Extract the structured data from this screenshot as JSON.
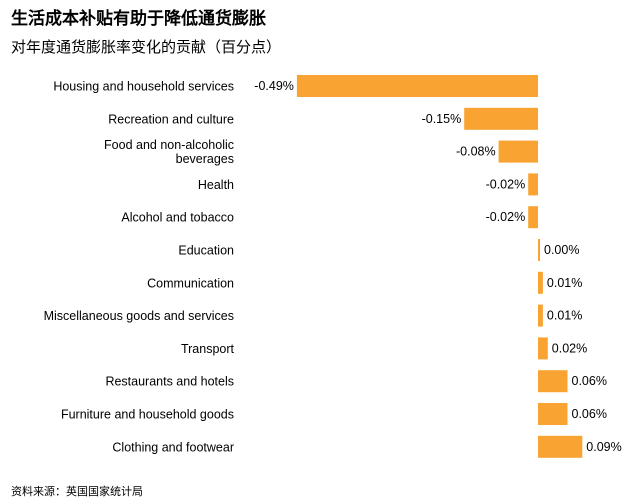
{
  "header": {
    "title": "生活成本补贴有助于降低通货膨胀",
    "subtitle": "对年度通货膨胀率变化的贡献（百分点）"
  },
  "footer": {
    "source": "资料来源：英国国家统计局"
  },
  "colors": {
    "bar": "#F9A432",
    "text": "#000000"
  },
  "chart_data": {
    "type": "bar",
    "orientation": "horizontal",
    "title": "生活成本补贴有助于降低通货膨胀",
    "subtitle": "对年度通货膨胀率变化的贡献（百分点）",
    "categories": [
      "Housing and household services",
      "Recreation and culture",
      "Food and non-alcoholic beverages",
      "Health",
      "Alcohol and tobacco",
      "Education",
      "Communication",
      "Miscellaneous goods and services",
      "Transport",
      "Restaurants and hotels",
      "Furniture and household goods",
      "Clothing and footwear"
    ],
    "category_lines": [
      [
        "Housing and household services"
      ],
      [
        "Recreation and culture"
      ],
      [
        "Food and non-alcoholic",
        "beverages"
      ],
      [
        "Health"
      ],
      [
        "Alcohol and tobacco"
      ],
      [
        "Education"
      ],
      [
        "Communication"
      ],
      [
        "Miscellaneous goods and services"
      ],
      [
        "Transport"
      ],
      [
        "Restaurants and hotels"
      ],
      [
        "Furniture and household goods"
      ],
      [
        "Clothing and footwear"
      ]
    ],
    "values": [
      -0.49,
      -0.15,
      -0.08,
      -0.02,
      -0.02,
      0.0,
      0.01,
      0.01,
      0.02,
      0.06,
      0.06,
      0.09
    ],
    "value_labels": [
      "-0.49%",
      "-0.15%",
      "-0.08%",
      "-0.02%",
      "-0.02%",
      "0.00%",
      "0.01%",
      "0.01%",
      "0.02%",
      "0.06%",
      "0.06%",
      "0.09%"
    ],
    "xlim": [
      -0.5,
      0.1
    ],
    "grid": false,
    "legend": "none"
  }
}
